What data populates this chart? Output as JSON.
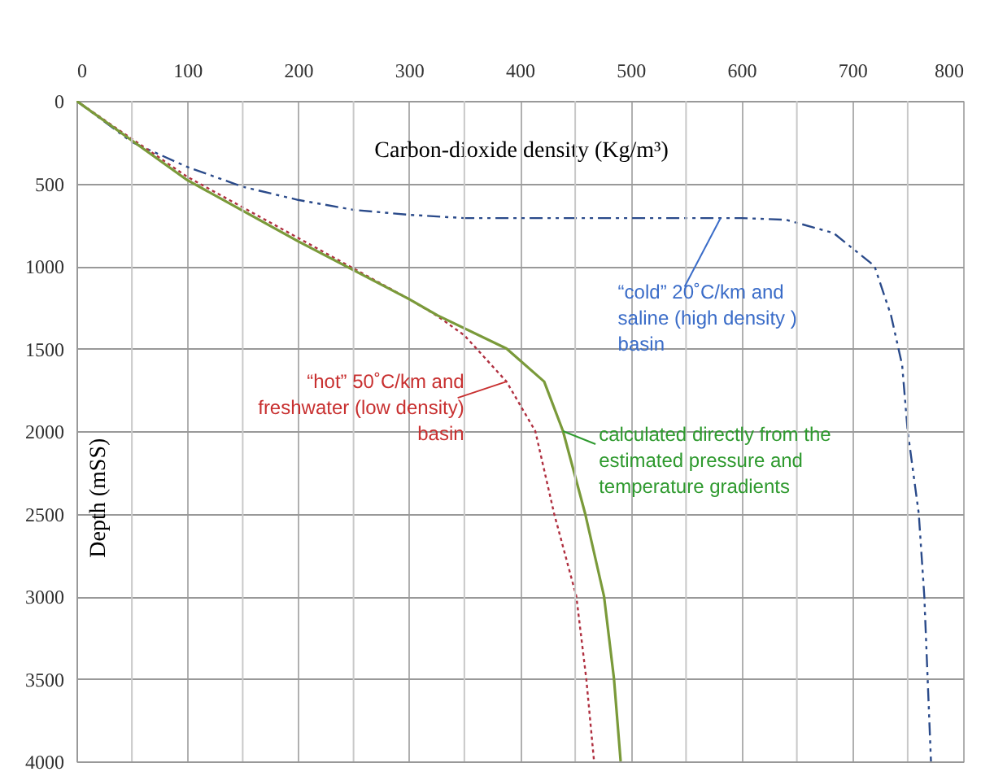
{
  "chart_data": {
    "type": "line",
    "xlabel": "Carbon-dioxide density (Kg/m³)",
    "ylabel": "Depth (mSS)",
    "xlim": [
      0,
      800
    ],
    "ylim": [
      4000,
      0
    ],
    "xticks": [
      0,
      {
        "value": 50,
        "label": null
      },
      100,
      {
        "value": 150,
        "label": null
      },
      200,
      {
        "value": 250,
        "label": null
      },
      300,
      {
        "value": 350,
        "label": null
      },
      400,
      {
        "value": 450,
        "label": null
      },
      500,
      {
        "value": 550,
        "label": null
      },
      600,
      {
        "value": 650,
        "label": null
      },
      700,
      {
        "value": 750,
        "label": null
      },
      800
    ],
    "yticks": [
      0,
      500,
      1000,
      1500,
      2000,
      2500,
      3000,
      3500,
      4000
    ],
    "grid": true,
    "marker": "none",
    "series": [
      {
        "color": "#2a4a8a",
        "line_style": "dashed",
        "x": [
          0,
          50,
          100,
          150,
          200,
          250,
          300,
          350,
          400,
          500,
          600,
          640,
          683,
          720,
          735,
          745,
          750,
          760,
          765,
          768,
          771
        ],
        "values": [
          0,
          250,
          400,
          520,
          600,
          660,
          690,
          710,
          710,
          710,
          710,
          720,
          800,
          1000,
          1300,
          1600,
          2000,
          2500,
          3000,
          3500,
          4000
        ]
      },
      {
        "color": "#b03040",
        "line_style": "dotted",
        "x": [
          0,
          100,
          200,
          300,
          325,
          350,
          388,
          414,
          431,
          451,
          460,
          467
        ],
        "values": [
          0,
          460,
          830,
          1200,
          1300,
          1420,
          1700,
          2000,
          2500,
          3000,
          3500,
          4000
        ]
      },
      {
        "color": "#7a9a3a",
        "line_style": "solid",
        "x": [
          0,
          100,
          200,
          300,
          326,
          388,
          422,
          439,
          459,
          476,
          485,
          491
        ],
        "values": [
          0,
          480,
          850,
          1200,
          1300,
          1500,
          1700,
          2000,
          2500,
          3000,
          3500,
          4000
        ]
      }
    ],
    "annotations": [
      {
        "text": "“cold”  20˚C/km  and\nsaline  (high density )\nbasin",
        "x": 581,
        "y": 712
      },
      {
        "text": "“hot” 50˚C/km and\nfreshwater (low density)\nbasin",
        "x": 388,
        "y": 1700
      },
      {
        "text": "calculated directly from the\nestimated pressure and\ntemperature gradients",
        "x": 439,
        "y": 2000
      }
    ]
  }
}
